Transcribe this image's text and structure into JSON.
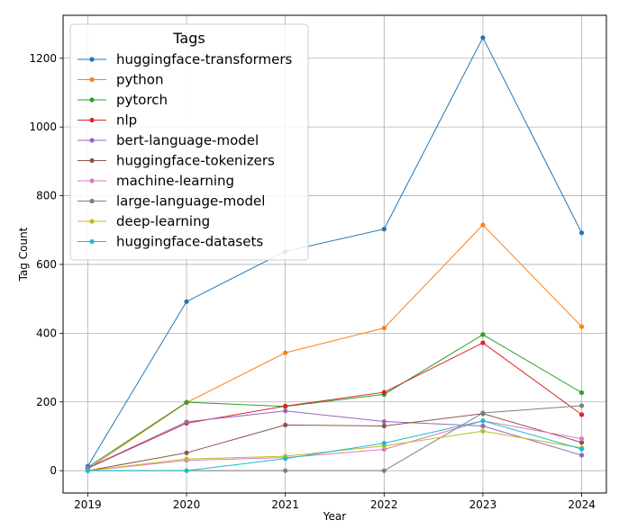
{
  "chart_data": {
    "type": "line",
    "title": "",
    "xlabel": "Year",
    "ylabel": "Tag Count",
    "x": [
      2019,
      2020,
      2021,
      2022,
      2023,
      2024
    ],
    "x_ticks": [
      "2019",
      "2020",
      "2021",
      "2022",
      "2023",
      "2024"
    ],
    "xlim": [
      2018.75,
      2024.25
    ],
    "ylim": [
      -65,
      1325
    ],
    "y_ticks": [
      0,
      200,
      400,
      600,
      800,
      1000,
      1200
    ],
    "grid": true,
    "legend": {
      "title": "Tags",
      "placement": "top-left"
    },
    "series": [
      {
        "name": "huggingface-transformers",
        "color": "#1f77b4",
        "values": [
          13,
          492,
          638,
          703,
          1260,
          692
        ]
      },
      {
        "name": "python",
        "color": "#ff7f0e",
        "values": [
          5,
          198,
          343,
          415,
          715,
          419
        ]
      },
      {
        "name": "pytorch",
        "color": "#2ca02c",
        "values": [
          10,
          199,
          187,
          222,
          396,
          227
        ]
      },
      {
        "name": "nlp",
        "color": "#d62728",
        "values": [
          7,
          138,
          188,
          228,
          372,
          163
        ]
      },
      {
        "name": "bert-language-model",
        "color": "#9467bd",
        "values": [
          8,
          142,
          174,
          143,
          130,
          45
        ]
      },
      {
        "name": "huggingface-tokenizers",
        "color": "#8c564b",
        "values": [
          0,
          52,
          133,
          130,
          166,
          82
        ]
      },
      {
        "name": "machine-learning",
        "color": "#e377c2",
        "values": [
          0,
          30,
          38,
          62,
          145,
          93
        ]
      },
      {
        "name": "large-language-model",
        "color": "#7f7f7f",
        "values": [
          0,
          0,
          0,
          0,
          168,
          189
        ]
      },
      {
        "name": "deep-learning",
        "color": "#bcbd22",
        "values": [
          0,
          34,
          42,
          72,
          115,
          66
        ]
      },
      {
        "name": "huggingface-datasets",
        "color": "#17becf",
        "values": [
          0,
          0,
          35,
          80,
          145,
          63
        ]
      }
    ]
  }
}
